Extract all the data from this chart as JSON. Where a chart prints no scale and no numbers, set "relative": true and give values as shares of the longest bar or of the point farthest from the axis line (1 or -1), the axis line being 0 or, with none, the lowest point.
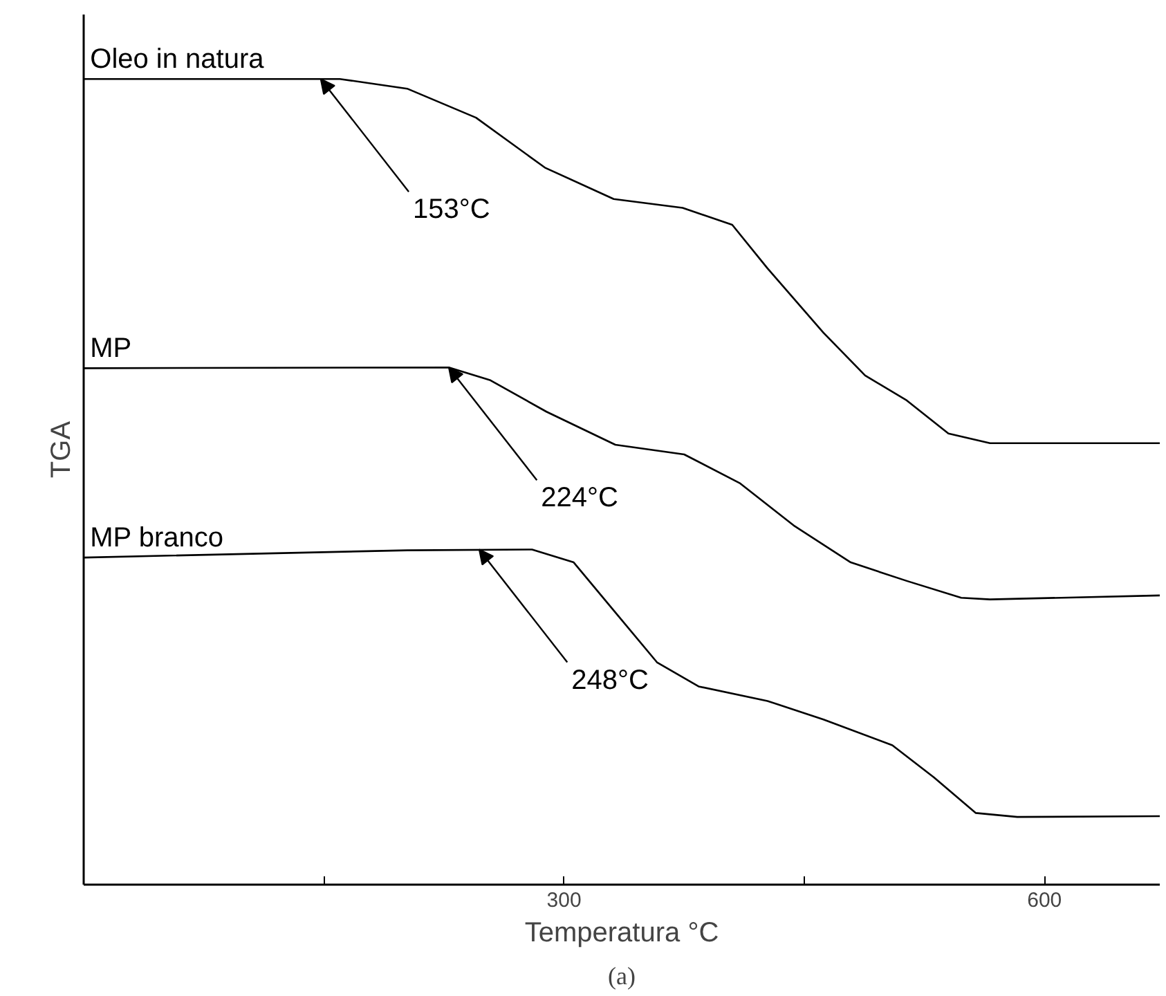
{
  "chart_data": {
    "type": "line",
    "relative": true,
    "xlabel": "Temperatura °C",
    "ylabel": "TGA",
    "xlim": [
      0,
      672
    ],
    "xticks": [
      {
        "value": 150,
        "label": null
      },
      300,
      {
        "value": 450,
        "label": null
      },
      600
    ],
    "grid": false,
    "marker": "none",
    "line_style": "solid",
    "series": [
      {
        "name": "Oleo in natura",
        "color": "#000000",
        "x": [
          0,
          160,
          202,
          245,
          288,
          331,
          374,
          405,
          427,
          462,
          488,
          514,
          540,
          566,
          672
        ],
        "values": [
          1.0,
          1.0,
          0.988,
          0.952,
          0.89,
          0.851,
          0.84,
          0.819,
          0.765,
          0.685,
          0.632,
          0.601,
          0.56,
          0.548,
          0.548
        ]
      },
      {
        "name": "MP",
        "color": "#000000",
        "x": [
          0,
          228,
          254,
          289,
          332,
          375,
          410,
          444,
          479,
          514,
          548,
          566,
          672
        ],
        "values": [
          0.641,
          0.642,
          0.626,
          0.587,
          0.546,
          0.534,
          0.498,
          0.445,
          0.4,
          0.377,
          0.356,
          0.354,
          0.359
        ]
      },
      {
        "name": "MP branco",
        "color": "#000000",
        "x": [
          0,
          202,
          280,
          306,
          332,
          358,
          384,
          427,
          462,
          505,
          531,
          557,
          583,
          672
        ],
        "values": [
          0.406,
          0.415,
          0.416,
          0.4,
          0.338,
          0.276,
          0.246,
          0.228,
          0.205,
          0.173,
          0.133,
          0.089,
          0.084,
          0.085
        ]
      }
    ],
    "annotations": [
      {
        "text": "153°C",
        "x": 148,
        "y": 1.0
      },
      {
        "text": "224°C",
        "x": 228,
        "y": 0.642
      },
      {
        "text": "248°C",
        "x": 247,
        "y": 0.416
      },
      "(a)"
    ]
  }
}
